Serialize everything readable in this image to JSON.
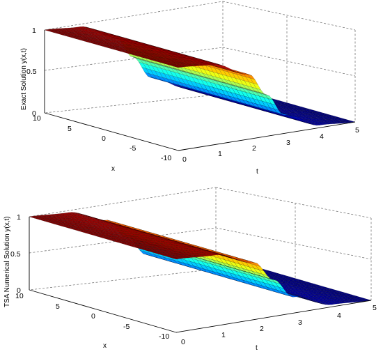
{
  "chart_data": [
    {
      "type": "surface",
      "zlabel": "Exact Solution y(x,t)",
      "xlabel": "x",
      "tlabel": "t",
      "x_range": [
        -10,
        10
      ],
      "t_range": [
        0,
        5
      ],
      "z_range": [
        0,
        1
      ],
      "x_ticks": [
        "10",
        "5",
        "0",
        "-5",
        "-10"
      ],
      "t_ticks": [
        "0",
        "1",
        "2",
        "3",
        "4",
        "5"
      ],
      "z_ticks": [
        "1",
        "0.5",
        "0"
      ],
      "grid": true,
      "colormap": "jet",
      "surface_samples": {
        "t": [
          0,
          1,
          2,
          2.5,
          3,
          4,
          5
        ],
        "y": [
          1.0,
          0.97,
          0.78,
          0.5,
          0.22,
          0.03,
          0.0
        ]
      }
    },
    {
      "type": "surface",
      "zlabel": "TSA Numerical Solution y(x,t)",
      "xlabel": "x",
      "tlabel": "t",
      "x_range": [
        -10,
        10
      ],
      "t_range": [
        0,
        5
      ],
      "z_range": [
        0,
        1
      ],
      "x_ticks": [
        "10",
        "5",
        "0",
        "-5",
        "-10"
      ],
      "t_ticks": [
        "0",
        "1",
        "2",
        "3",
        "4",
        "5"
      ],
      "z_ticks": [
        "1",
        "0.5",
        "0"
      ],
      "grid": true,
      "colormap": "jet",
      "surface_samples": {
        "t": [
          0,
          1,
          2,
          2.5,
          3,
          4,
          5
        ],
        "y": [
          1.0,
          0.97,
          0.78,
          0.5,
          0.22,
          0.03,
          0.0
        ]
      }
    }
  ]
}
